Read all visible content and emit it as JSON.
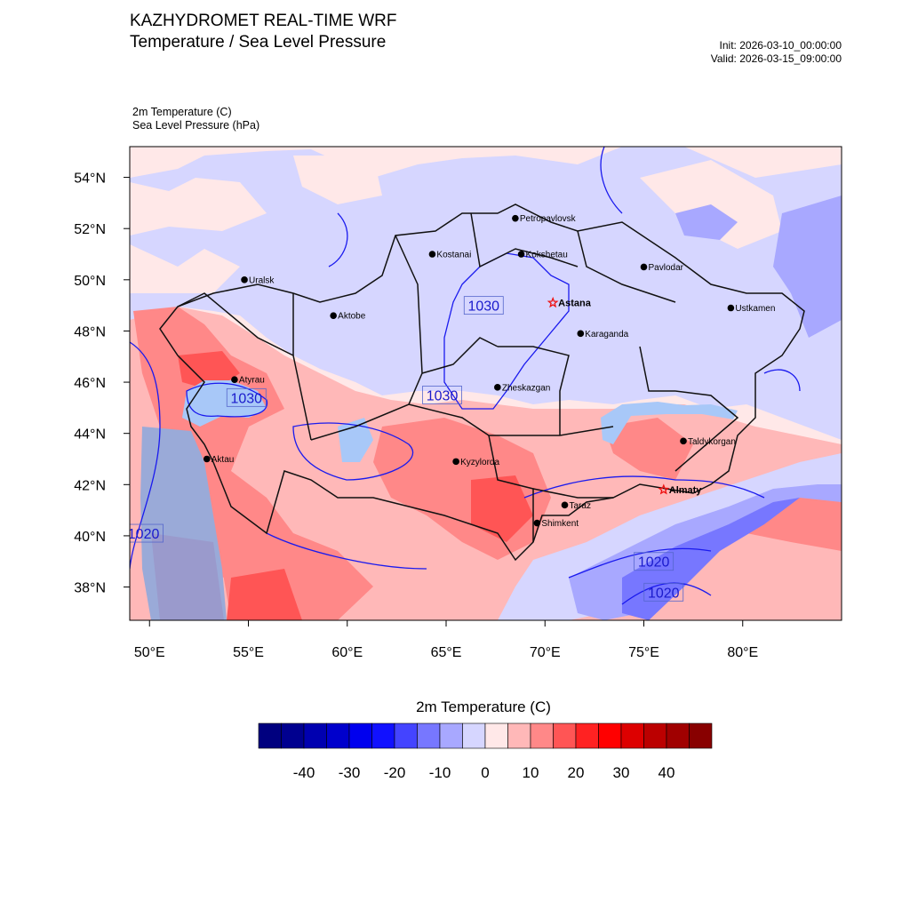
{
  "header": {
    "title_line1": "KAZHYDROMET REAL-TIME WRF",
    "title_line2": "Temperature / Sea Level Pressure",
    "init": "Init: 2026-03-10_00:00:00",
    "valid": "Valid: 2026-03-15_09:00:00",
    "var1": "2m Temperature   (C)",
    "var2": "Sea Level Pressure   (hPa)"
  },
  "map": {
    "lon_range": [
      49,
      85
    ],
    "lat_range": [
      36.7,
      55.2
    ],
    "lon_ticks": [
      {
        "value": 50,
        "label": "50°E"
      },
      {
        "value": 55,
        "label": "55°E"
      },
      {
        "value": 60,
        "label": "60°E"
      },
      {
        "value": 65,
        "label": "65°E"
      },
      {
        "value": 70,
        "label": "70°E"
      },
      {
        "value": 75,
        "label": "75°E"
      },
      {
        "value": 80,
        "label": "80°E"
      }
    ],
    "lat_ticks": [
      {
        "value": 54,
        "label": "54°N"
      },
      {
        "value": 52,
        "label": "52°N"
      },
      {
        "value": 50,
        "label": "50°N"
      },
      {
        "value": 48,
        "label": "48°N"
      },
      {
        "value": 46,
        "label": "46°N"
      },
      {
        "value": 44,
        "label": "44°N"
      },
      {
        "value": 42,
        "label": "42°N"
      },
      {
        "value": 40,
        "label": "40°N"
      },
      {
        "value": 38,
        "label": "38°N"
      }
    ],
    "cities": [
      {
        "name": "Petropavlovsk",
        "lon": 68.5,
        "lat": 52.4,
        "capital": false
      },
      {
        "name": "Kostanai",
        "lon": 64.3,
        "lat": 51.0,
        "capital": false
      },
      {
        "name": "Kokshetau",
        "lon": 68.8,
        "lat": 51.0,
        "capital": false
      },
      {
        "name": "Pavlodar",
        "lon": 75.0,
        "lat": 50.5,
        "capital": false
      },
      {
        "name": "Uralsk",
        "lon": 54.8,
        "lat": 50.0,
        "capital": false
      },
      {
        "name": "Aktobe",
        "lon": 59.3,
        "lat": 48.6,
        "capital": false
      },
      {
        "name": "Astana",
        "lon": 70.4,
        "lat": 49.1,
        "capital": true
      },
      {
        "name": "Ustkamen",
        "lon": 79.4,
        "lat": 48.9,
        "capital": false
      },
      {
        "name": "Karaganda",
        "lon": 71.8,
        "lat": 47.9,
        "capital": false
      },
      {
        "name": "Atyrau",
        "lon": 54.3,
        "lat": 46.1,
        "capital": false
      },
      {
        "name": "Zheskazgan",
        "lon": 67.6,
        "lat": 45.8,
        "capital": false
      },
      {
        "name": "Taldykorgan",
        "lon": 77.0,
        "lat": 43.7,
        "capital": false
      },
      {
        "name": "Aktau",
        "lon": 52.9,
        "lat": 43.0,
        "capital": false
      },
      {
        "name": "Kyzylorda",
        "lon": 65.5,
        "lat": 42.9,
        "capital": false
      },
      {
        "name": "Almaty",
        "lon": 76.0,
        "lat": 41.8,
        "capital": true
      },
      {
        "name": "Taraz",
        "lon": 71.0,
        "lat": 41.2,
        "capital": false
      },
      {
        "name": "Shimkent",
        "lon": 69.6,
        "lat": 40.5,
        "capital": false
      }
    ],
    "isobar_labels": [
      {
        "text": "1030",
        "lon": 66.9,
        "lat": 49.0
      },
      {
        "text": "1030",
        "lon": 54.9,
        "lat": 45.4
      },
      {
        "text": "1030",
        "lon": 64.8,
        "lat": 45.5
      },
      {
        "text": "1020",
        "lon": 49.7,
        "lat": 40.1
      },
      {
        "text": "1020",
        "lon": 75.5,
        "lat": 39.0
      },
      {
        "text": "1020",
        "lon": 76.0,
        "lat": 37.8
      }
    ]
  },
  "colorbar": {
    "title": "2m Temperature  (C)",
    "colors": [
      "#00007f",
      "#00008f",
      "#0000b0",
      "#0000cc",
      "#0000ee",
      "#1111ff",
      "#4444ff",
      "#7777ff",
      "#a8a8ff",
      "#d6d6ff",
      "#ffe8e8",
      "#ffb8b8",
      "#ff8888",
      "#ff5555",
      "#ff2222",
      "#ff0000",
      "#dd0000",
      "#bb0000",
      "#a00000",
      "#880000"
    ],
    "labels": [
      {
        "text": "-40",
        "box": 2
      },
      {
        "text": "-30",
        "box": 4
      },
      {
        "text": "-20",
        "box": 6
      },
      {
        "text": "-10",
        "box": 8
      },
      {
        "text": "0",
        "box": 10
      },
      {
        "text": "10",
        "box": 12
      },
      {
        "text": "20",
        "box": 14
      },
      {
        "text": "30",
        "box": 16
      },
      {
        "text": "40",
        "box": 18
      }
    ]
  }
}
